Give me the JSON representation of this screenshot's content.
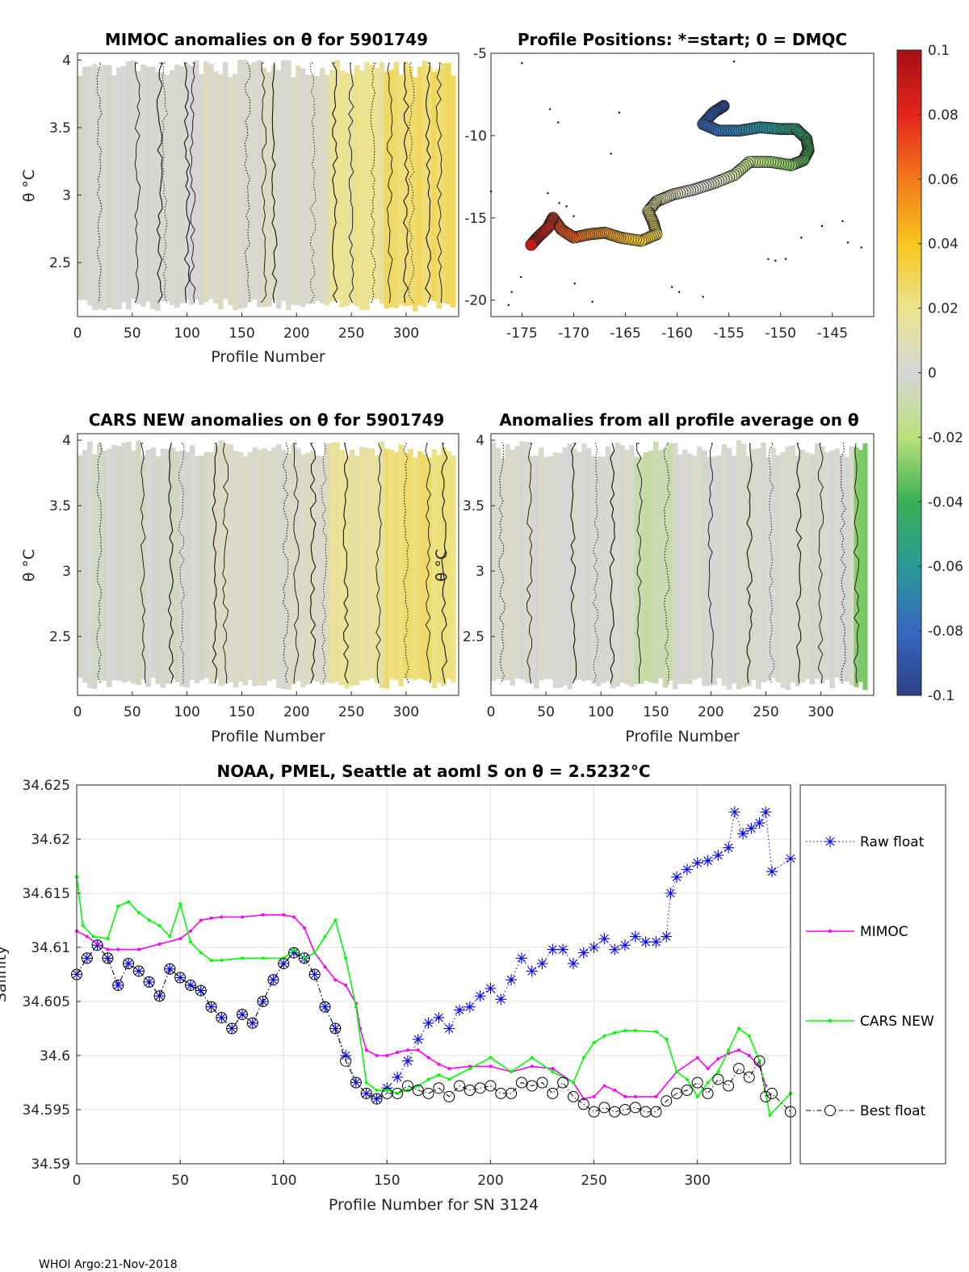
{
  "footer": "WHOI Argo:21-Nov-2018",
  "chart_data": [
    {
      "type": "heatmap",
      "title": "MIMOC anomalies on θ  for 5901749",
      "xlabel": "Profile Number",
      "ylabel": "θ °C",
      "xlim": [
        0,
        348
      ],
      "ylim": [
        2.1,
        4.05
      ],
      "xticks": [
        0,
        50,
        100,
        150,
        200,
        250,
        300
      ],
      "xtick_labels": [
        "0",
        "50",
        "100",
        "150",
        "200",
        "250",
        "300"
      ],
      "yticks": [
        2.5,
        3,
        3.5,
        4
      ],
      "ytick_labels": [
        "2.5",
        "3",
        "3.5",
        "4"
      ],
      "bands": [
        {
          "x0": 0,
          "x1": 115,
          "anomaly": 0.0
        },
        {
          "x0": 115,
          "x1": 230,
          "anomaly": 0.004
        },
        {
          "x0": 230,
          "x1": 280,
          "anomaly": 0.018
        },
        {
          "x0": 280,
          "x1": 345,
          "anomaly": 0.026
        }
      ],
      "contour_x": [
        20,
        55,
        75,
        80,
        100,
        105,
        155,
        170,
        180,
        215,
        235,
        250,
        270,
        285,
        300,
        305,
        320,
        330
      ]
    },
    {
      "type": "scatter",
      "title": "Profile Positions: *=start; 0 = DMQC",
      "xlim": [
        -178,
        -141
      ],
      "ylim": [
        -21,
        -5
      ],
      "xticks": [
        -175,
        -170,
        -165,
        -160,
        -155,
        -150,
        -145
      ],
      "xtick_labels": [
        "-175",
        "-170",
        "-165",
        "-160",
        "-155",
        "-150",
        "-145"
      ],
      "yticks": [
        -5,
        -10,
        -15,
        -20
      ],
      "ytick_labels": [
        "-5",
        "-10",
        "-15",
        "-20"
      ],
      "track": [
        [
          -155.5,
          -8.2
        ],
        [
          -156.5,
          -8.6
        ],
        [
          -157.5,
          -9.3
        ],
        [
          -156.0,
          -9.7
        ],
        [
          -154.0,
          -9.7
        ],
        [
          -152.0,
          -9.5
        ],
        [
          -150.0,
          -9.6
        ],
        [
          -148.5,
          -9.6
        ],
        [
          -147.5,
          -10.2
        ],
        [
          -147.3,
          -10.9
        ],
        [
          -147.8,
          -11.5
        ],
        [
          -149.0,
          -11.8
        ],
        [
          -151.0,
          -11.6
        ],
        [
          -153.0,
          -11.6
        ],
        [
          -154.5,
          -12.4
        ],
        [
          -156.5,
          -12.9
        ],
        [
          -158.5,
          -13.3
        ],
        [
          -160.5,
          -13.6
        ],
        [
          -162.0,
          -14.0
        ],
        [
          -162.8,
          -14.6
        ],
        [
          -162.3,
          -15.3
        ],
        [
          -162.0,
          -16.0
        ],
        [
          -163.5,
          -16.4
        ],
        [
          -165.5,
          -16.2
        ],
        [
          -167.0,
          -15.9
        ],
        [
          -168.5,
          -16.0
        ],
        [
          -170.0,
          -16.2
        ],
        [
          -171.2,
          -15.7
        ],
        [
          -172.0,
          -15.0
        ],
        [
          -172.5,
          -15.6
        ],
        [
          -173.5,
          -16.2
        ],
        [
          -174.2,
          -16.7
        ]
      ],
      "color_range": [
        -0.1,
        0.1
      ],
      "colorbar_ticks": [
        0.1,
        0.08,
        0.06,
        0.04,
        0.02,
        0,
        -0.02,
        -0.04,
        -0.06,
        -0.08,
        -0.1
      ],
      "colorbar_tick_labels": [
        "0.1",
        "0.08",
        "0.06",
        "0.04",
        "0.02",
        "0",
        "-0.02",
        "-0.04",
        "-0.06",
        "-0.08",
        "-0.1"
      ]
    },
    {
      "type": "heatmap",
      "title": "CARS NEW anomalies on θ for 5901749",
      "xlabel": "Profile Number",
      "ylabel": "θ °C",
      "xlim": [
        0,
        348
      ],
      "ylim": [
        2.05,
        4.05
      ],
      "xticks": [
        0,
        50,
        100,
        150,
        200,
        250,
        300
      ],
      "xtick_labels": [
        "0",
        "50",
        "100",
        "150",
        "200",
        "250",
        "300"
      ],
      "yticks": [
        2.5,
        3,
        3.5,
        4
      ],
      "ytick_labels": [
        "2.5",
        "3",
        "3.5",
        "4"
      ],
      "bands": [
        {
          "x0": 0,
          "x1": 120,
          "anomaly": -0.002
        },
        {
          "x0": 120,
          "x1": 230,
          "anomaly": 0.004
        },
        {
          "x0": 230,
          "x1": 280,
          "anomaly": 0.016
        },
        {
          "x0": 280,
          "x1": 345,
          "anomaly": 0.024
        }
      ],
      "contour_x": [
        20,
        60,
        85,
        95,
        125,
        135,
        190,
        200,
        215,
        225,
        245,
        275,
        300,
        320,
        335
      ]
    },
    {
      "type": "heatmap",
      "title": "Anomalies from all profile average on θ",
      "xlabel": "Profile Number",
      "ylabel": "θ °C",
      "xlim": [
        0,
        348
      ],
      "ylim": [
        2.05,
        4.05
      ],
      "xticks": [
        0,
        50,
        100,
        150,
        200,
        250,
        300
      ],
      "xtick_labels": [
        "0",
        "50",
        "100",
        "150",
        "200",
        "250",
        "300"
      ],
      "yticks": [
        2.5,
        3,
        3.5,
        4
      ],
      "ytick_labels": [
        "2.5",
        "3",
        "3.5",
        "4"
      ],
      "bands": [
        {
          "x0": 0,
          "x1": 130,
          "anomaly": 0.002
        },
        {
          "x0": 130,
          "x1": 165,
          "anomaly": -0.01
        },
        {
          "x0": 165,
          "x1": 330,
          "anomaly": 0.001
        },
        {
          "x0": 330,
          "x1": 342,
          "anomaly": -0.03
        }
      ],
      "contour_x": [
        10,
        35,
        75,
        95,
        110,
        135,
        160,
        200,
        235,
        255,
        280,
        300,
        320,
        332
      ]
    },
    {
      "type": "line",
      "title": "NOAA, PMEL, Seattle at aoml S on θ = 2.5232°C",
      "xlabel": "Profile Number for SN 3124",
      "ylabel": "Salinity",
      "xlim": [
        0,
        345
      ],
      "ylim": [
        34.59,
        34.625
      ],
      "grid": true,
      "legend_placement": "right",
      "xticks": [
        0,
        50,
        100,
        150,
        200,
        250,
        300
      ],
      "xtick_labels": [
        "0",
        "50",
        "100",
        "150",
        "200",
        "250",
        "300"
      ],
      "yticks": [
        34.59,
        34.595,
        34.6,
        34.605,
        34.61,
        34.615,
        34.62,
        34.625
      ],
      "ytick_labels": [
        "34.59",
        "34.595",
        "34.6",
        "34.605",
        "34.61",
        "34.615",
        "34.62",
        "34.625"
      ],
      "series": [
        {
          "name": "Raw float",
          "color": "#0000ff",
          "style": "dotted-star",
          "x": [
            0,
            5,
            10,
            15,
            20,
            25,
            30,
            35,
            40,
            45,
            50,
            55,
            60,
            65,
            70,
            75,
            80,
            85,
            90,
            95,
            100,
            105,
            110,
            115,
            120,
            125,
            130,
            135,
            140,
            145,
            150,
            155,
            160,
            165,
            170,
            175,
            180,
            185,
            190,
            195,
            200,
            205,
            210,
            215,
            220,
            225,
            230,
            235,
            240,
            245,
            250,
            255,
            260,
            265,
            270,
            275,
            280,
            285,
            287,
            290,
            295,
            300,
            305,
            310,
            315,
            318,
            322,
            326,
            330,
            333,
            336,
            345
          ],
          "y": [
            34.6075,
            34.609,
            34.6102,
            34.609,
            34.6065,
            34.6085,
            34.6078,
            34.6068,
            34.6055,
            34.608,
            34.6072,
            34.6065,
            34.606,
            34.6045,
            34.6035,
            34.6025,
            34.6038,
            34.603,
            34.605,
            34.607,
            34.6085,
            34.6095,
            34.609,
            34.6075,
            34.6045,
            34.6025,
            34.6,
            34.5975,
            34.5965,
            34.596,
            34.597,
            34.598,
            34.5995,
            34.6015,
            34.603,
            34.6035,
            34.6025,
            34.6042,
            34.6045,
            34.6055,
            34.6062,
            34.6052,
            34.607,
            34.609,
            34.6078,
            34.6085,
            34.6098,
            34.6098,
            34.6085,
            34.6095,
            34.61,
            34.6108,
            34.6098,
            34.6102,
            34.611,
            34.6105,
            34.6105,
            34.611,
            34.615,
            34.6165,
            34.6172,
            34.6178,
            34.618,
            34.6185,
            34.6192,
            34.6225,
            34.6205,
            34.621,
            34.6215,
            34.6225,
            34.617,
            34.6182
          ]
        },
        {
          "name": "MIMOC",
          "color": "#ff00ff",
          "style": "line-dot",
          "x": [
            0,
            5,
            10,
            15,
            20,
            30,
            40,
            50,
            55,
            60,
            65,
            70,
            80,
            90,
            100,
            105,
            110,
            115,
            120,
            125,
            130,
            135,
            137,
            140,
            145,
            150,
            155,
            160,
            165,
            170,
            175,
            180,
            190,
            200,
            210,
            220,
            230,
            240,
            245,
            250,
            255,
            260,
            265,
            270,
            280,
            290,
            300,
            305,
            310,
            315,
            320,
            325,
            330,
            333
          ],
          "y": [
            34.6115,
            34.611,
            34.6103,
            34.6098,
            34.6098,
            34.6098,
            34.6103,
            34.6108,
            34.6115,
            34.6125,
            34.6127,
            34.6128,
            34.6128,
            34.613,
            34.613,
            34.6128,
            34.6118,
            34.6095,
            34.6082,
            34.607,
            34.6065,
            34.6048,
            34.6025,
            34.6005,
            34.6,
            34.6,
            34.6003,
            34.6005,
            34.6005,
            34.5998,
            34.5992,
            34.5988,
            34.599,
            34.599,
            34.5985,
            34.599,
            34.5988,
            34.5975,
            34.596,
            34.5962,
            34.5972,
            34.5968,
            34.5962,
            34.5962,
            34.5962,
            34.5985,
            34.5998,
            34.5988,
            34.5997,
            34.6002,
            34.6005,
            34.6,
            34.599,
            34.5972
          ]
        },
        {
          "name": "CARS NEW",
          "color": "#00ff00",
          "style": "line-dot",
          "x": [
            0,
            3,
            8,
            15,
            20,
            25,
            30,
            35,
            40,
            45,
            50,
            55,
            60,
            65,
            70,
            80,
            90,
            100,
            105,
            110,
            115,
            120,
            125,
            130,
            135,
            140,
            145,
            150,
            155,
            160,
            165,
            170,
            175,
            180,
            190,
            200,
            210,
            220,
            230,
            240,
            245,
            250,
            255,
            260,
            265,
            270,
            280,
            285,
            290,
            295,
            300,
            305,
            310,
            315,
            320,
            325,
            330,
            335,
            345
          ],
          "y": [
            34.6165,
            34.612,
            34.611,
            34.6108,
            34.6138,
            34.6142,
            34.6132,
            34.6125,
            34.612,
            34.611,
            34.614,
            34.6105,
            34.6095,
            34.6088,
            34.6088,
            34.609,
            34.609,
            34.609,
            34.6098,
            34.609,
            34.6095,
            34.611,
            34.6125,
            34.609,
            34.6045,
            34.5975,
            34.5968,
            34.5968,
            34.5965,
            34.5968,
            34.5972,
            34.5978,
            34.5982,
            34.5978,
            34.5988,
            34.5998,
            34.5985,
            34.5998,
            34.5985,
            34.5975,
            34.5998,
            34.6012,
            34.6018,
            34.6021,
            34.6023,
            34.6023,
            34.6022,
            34.6015,
            34.5985,
            34.5978,
            34.5962,
            34.5975,
            34.5985,
            34.6005,
            34.6025,
            34.6018,
            34.5995,
            34.5945,
            34.5965
          ]
        },
        {
          "name": "Best float",
          "color": "#000000",
          "style": "dashdot-circle",
          "x": [
            0,
            5,
            10,
            15,
            20,
            25,
            30,
            35,
            40,
            45,
            50,
            55,
            60,
            65,
            70,
            75,
            80,
            85,
            90,
            95,
            100,
            105,
            110,
            115,
            120,
            125,
            130,
            135,
            140,
            145,
            150,
            155,
            160,
            165,
            170,
            175,
            180,
            185,
            190,
            195,
            200,
            205,
            210,
            215,
            220,
            225,
            230,
            235,
            240,
            245,
            250,
            255,
            260,
            265,
            270,
            275,
            280,
            285,
            290,
            295,
            300,
            305,
            310,
            315,
            320,
            325,
            330,
            333,
            336,
            345
          ],
          "y": [
            34.6075,
            34.609,
            34.6102,
            34.609,
            34.6065,
            34.6085,
            34.6078,
            34.6068,
            34.6055,
            34.608,
            34.6072,
            34.6065,
            34.606,
            34.6045,
            34.6035,
            34.6025,
            34.6038,
            34.603,
            34.605,
            34.607,
            34.6085,
            34.6095,
            34.609,
            34.6075,
            34.6045,
            34.6025,
            34.5995,
            34.5975,
            34.5965,
            34.596,
            34.5965,
            34.5965,
            34.5972,
            34.5968,
            34.5965,
            34.597,
            34.5962,
            34.5972,
            34.5968,
            34.597,
            34.5972,
            34.5965,
            34.5965,
            34.5975,
            34.5972,
            34.5975,
            34.5965,
            34.5975,
            34.5962,
            34.5955,
            34.5948,
            34.5952,
            34.5948,
            34.595,
            34.5952,
            34.5948,
            34.5948,
            34.5958,
            34.5965,
            34.5968,
            34.5975,
            34.5965,
            34.5978,
            34.5972,
            34.5988,
            34.598,
            34.5995,
            34.5962,
            34.5965,
            34.5948
          ]
        }
      ]
    }
  ]
}
